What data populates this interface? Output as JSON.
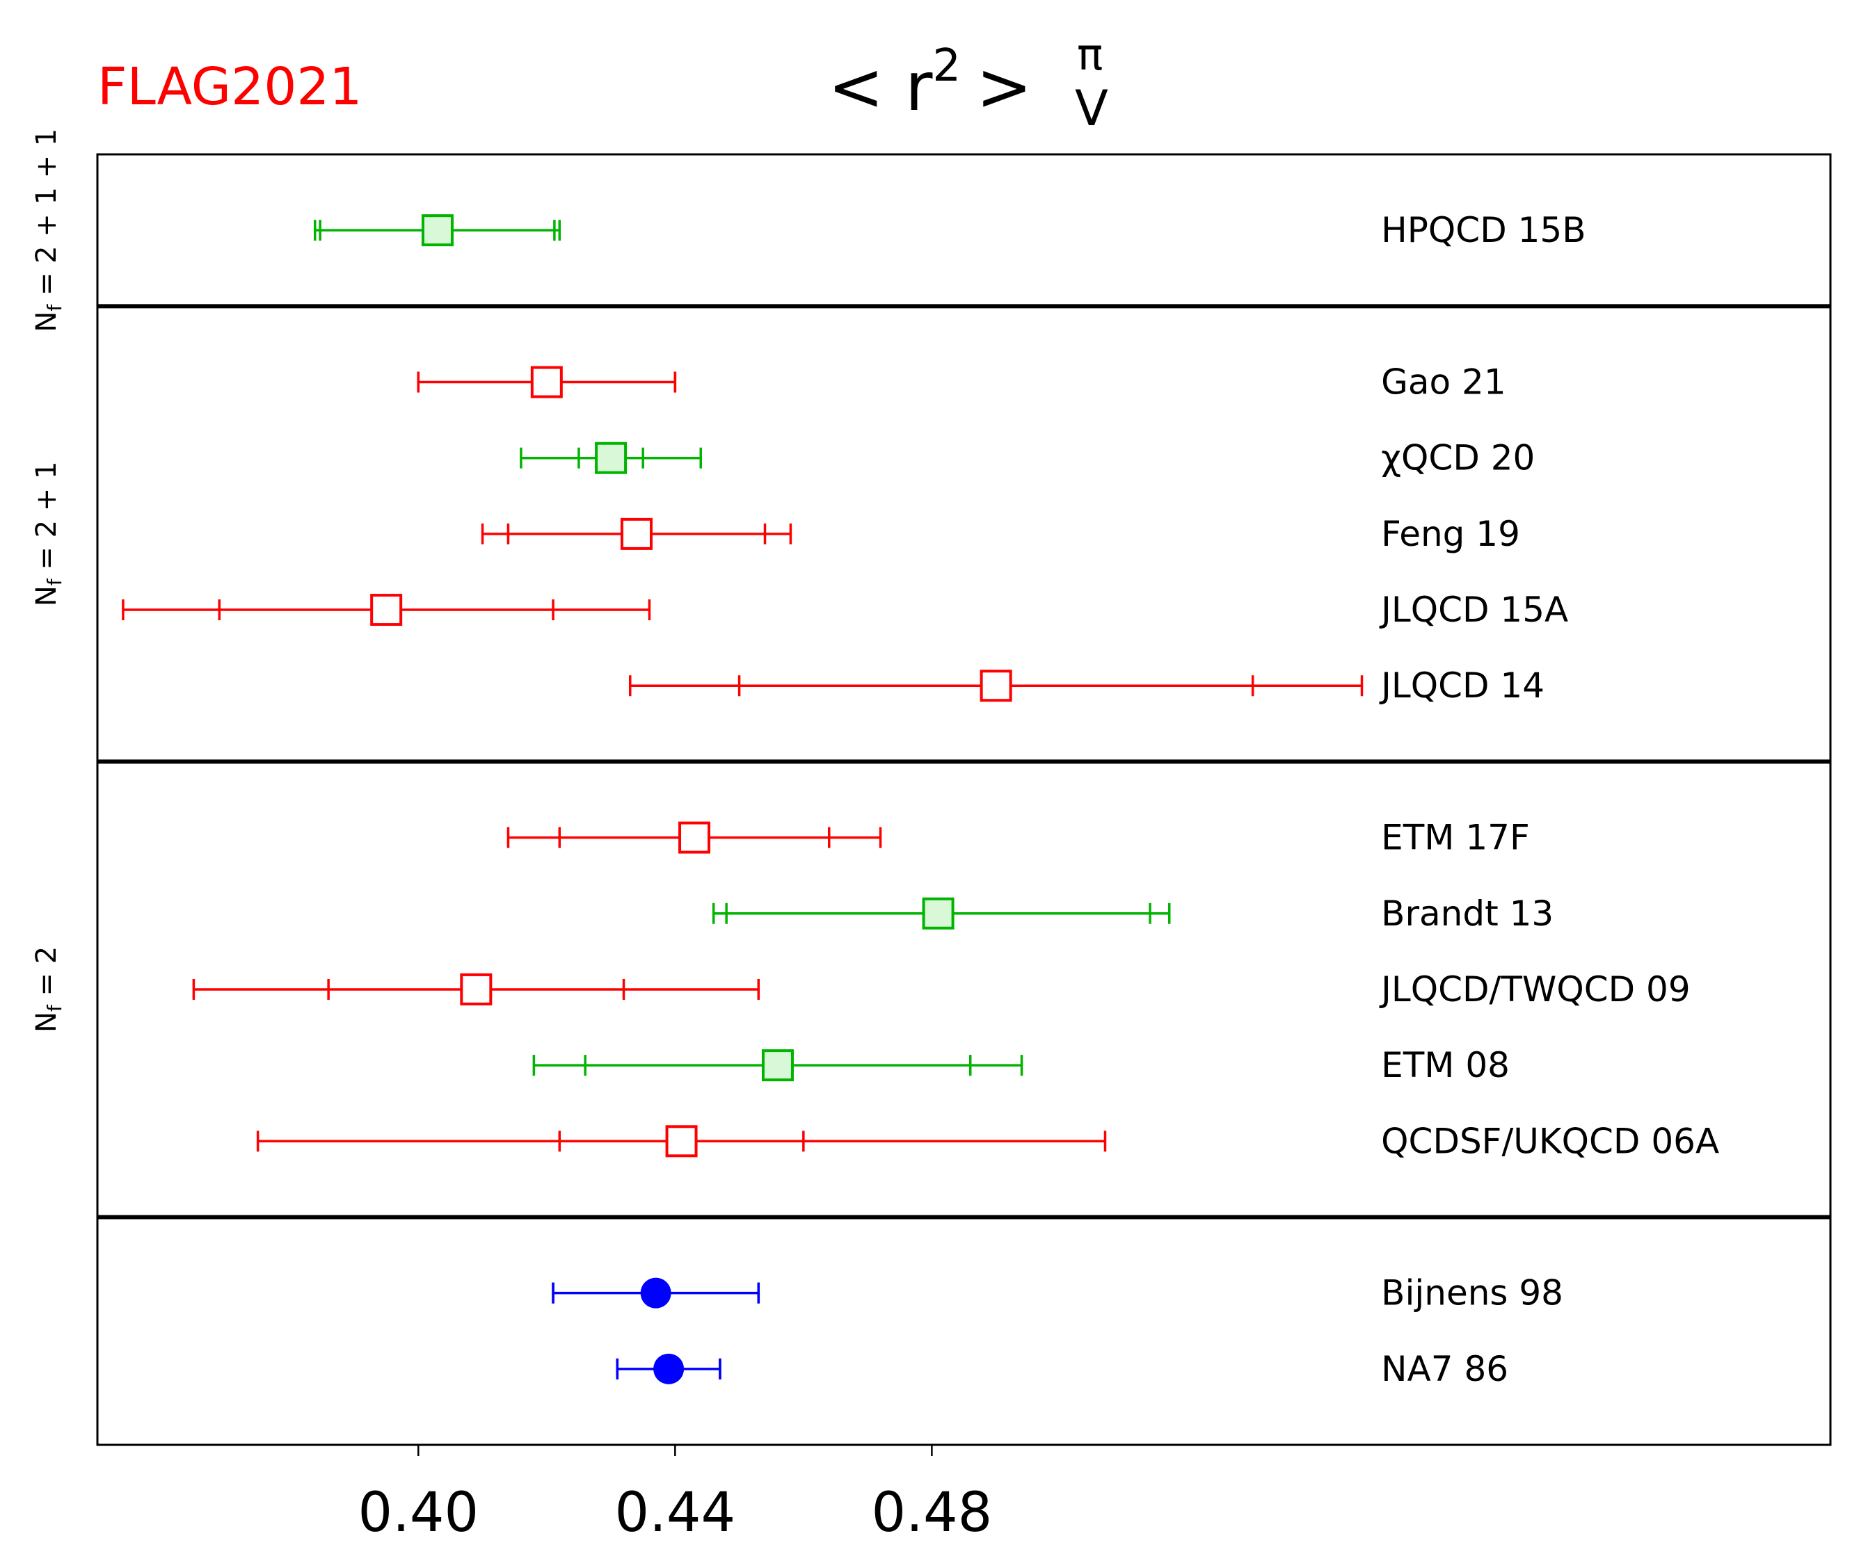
{
  "chart_data": {
    "type": "scatter",
    "title": "< r² >",
    "title_base": "< r",
    "title_sup": "2",
    "title_close": ">",
    "title_superscript": "π",
    "title_subscript": "V",
    "logo": {
      "text": "FLAG2021",
      "color": "#ff0000"
    },
    "xlim": [
      0.35,
      0.62
    ],
    "xticks": [
      0.4,
      0.44,
      0.48
    ],
    "xtick_labels": [
      "0.40",
      "0.44",
      "0.48"
    ],
    "xlabel": "",
    "ylabel": "",
    "grid": false,
    "colors": {
      "red": "#ff0000",
      "green": "#00b400",
      "green_fill": "#d8f8d8",
      "blue": "#0000ff"
    },
    "groups": [
      {
        "label_main": "N",
        "label_sub": "f",
        "label_rest": " = 2 + 1 + 1",
        "rows": 1
      },
      {
        "label_main": "N",
        "label_sub": "f",
        "label_rest": " = 2 + 1",
        "rows": 5
      },
      {
        "label_main": "N",
        "label_sub": "f",
        "label_rest": " = 2",
        "rows": 5
      },
      {
        "label_main": "",
        "label_sub": "",
        "label_rest": "",
        "rows": 2
      }
    ],
    "points": [
      {
        "label": "HPQCD 15B",
        "group": 0,
        "value": 0.403,
        "stat": [
          0.3847,
          0.4212
        ],
        "total": [
          0.3839,
          0.422
        ],
        "color": "green",
        "marker": "square-filled"
      },
      {
        "label": "Gao 21",
        "group": 1,
        "value": 0.42,
        "stat": [
          0.4,
          0.44
        ],
        "total": [
          0.4,
          0.44
        ],
        "color": "red",
        "marker": "square-open"
      },
      {
        "label": "χQCD 20",
        "group": 1,
        "value": 0.43,
        "stat": [
          0.425,
          0.435
        ],
        "total": [
          0.416,
          0.444
        ],
        "color": "green",
        "marker": "square-filled"
      },
      {
        "label": "Feng 19",
        "group": 1,
        "value": 0.434,
        "stat": [
          0.414,
          0.454
        ],
        "total": [
          0.41,
          0.458
        ],
        "color": "red",
        "marker": "square-open"
      },
      {
        "label": "JLQCD 15A",
        "group": 1,
        "value": 0.395,
        "stat": [
          0.369,
          0.421
        ],
        "total": [
          0.354,
          0.436
        ],
        "color": "red",
        "marker": "square-open"
      },
      {
        "label": "JLQCD 14",
        "group": 1,
        "value": 0.49,
        "stat": [
          0.45,
          0.53
        ],
        "total": [
          0.433,
          0.547
        ],
        "color": "red",
        "marker": "square-open"
      },
      {
        "label": "ETM 17F",
        "group": 2,
        "value": 0.443,
        "stat": [
          0.422,
          0.464
        ],
        "total": [
          0.414,
          0.472
        ],
        "color": "red",
        "marker": "square-open"
      },
      {
        "label": "Brandt 13",
        "group": 2,
        "value": 0.481,
        "stat": [
          0.448,
          0.514
        ],
        "total": [
          0.446,
          0.517
        ],
        "color": "green",
        "marker": "square-filled"
      },
      {
        "label": "JLQCD/TWQCD 09",
        "group": 2,
        "value": 0.409,
        "stat": [
          0.386,
          0.432
        ],
        "total": [
          0.365,
          0.453
        ],
        "color": "red",
        "marker": "square-open"
      },
      {
        "label": "ETM 08",
        "group": 2,
        "value": 0.456,
        "stat": [
          0.426,
          0.486
        ],
        "total": [
          0.418,
          0.494
        ],
        "color": "green",
        "marker": "square-filled"
      },
      {
        "label": "QCDSF/UKQCD 06A",
        "group": 2,
        "value": 0.441,
        "stat": [
          0.422,
          0.46
        ],
        "total": [
          0.375,
          0.507
        ],
        "color": "red",
        "marker": "square-open"
      },
      {
        "label": "Bijnens 98",
        "group": 3,
        "value": 0.437,
        "stat": [
          0.421,
          0.453
        ],
        "total": [
          0.421,
          0.453
        ],
        "color": "blue",
        "marker": "circle"
      },
      {
        "label": "NA7 86",
        "group": 3,
        "value": 0.439,
        "stat": [
          0.431,
          0.447
        ],
        "total": [
          0.431,
          0.447
        ],
        "color": "blue",
        "marker": "circle"
      }
    ]
  }
}
